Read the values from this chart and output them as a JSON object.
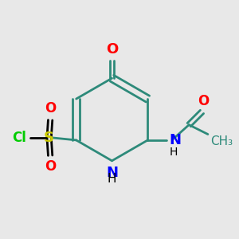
{
  "bg_color": "#e8e8e8",
  "ring_color": "#2d8a7a",
  "bond_width": 2.0,
  "atom_colors": {
    "O": "#ff0000",
    "N": "#0000ff",
    "S": "#cccc00",
    "Cl": "#00cc00",
    "C": "#2d8a7a",
    "H": "#000000"
  },
  "font_size": 13,
  "font_size_small": 11
}
